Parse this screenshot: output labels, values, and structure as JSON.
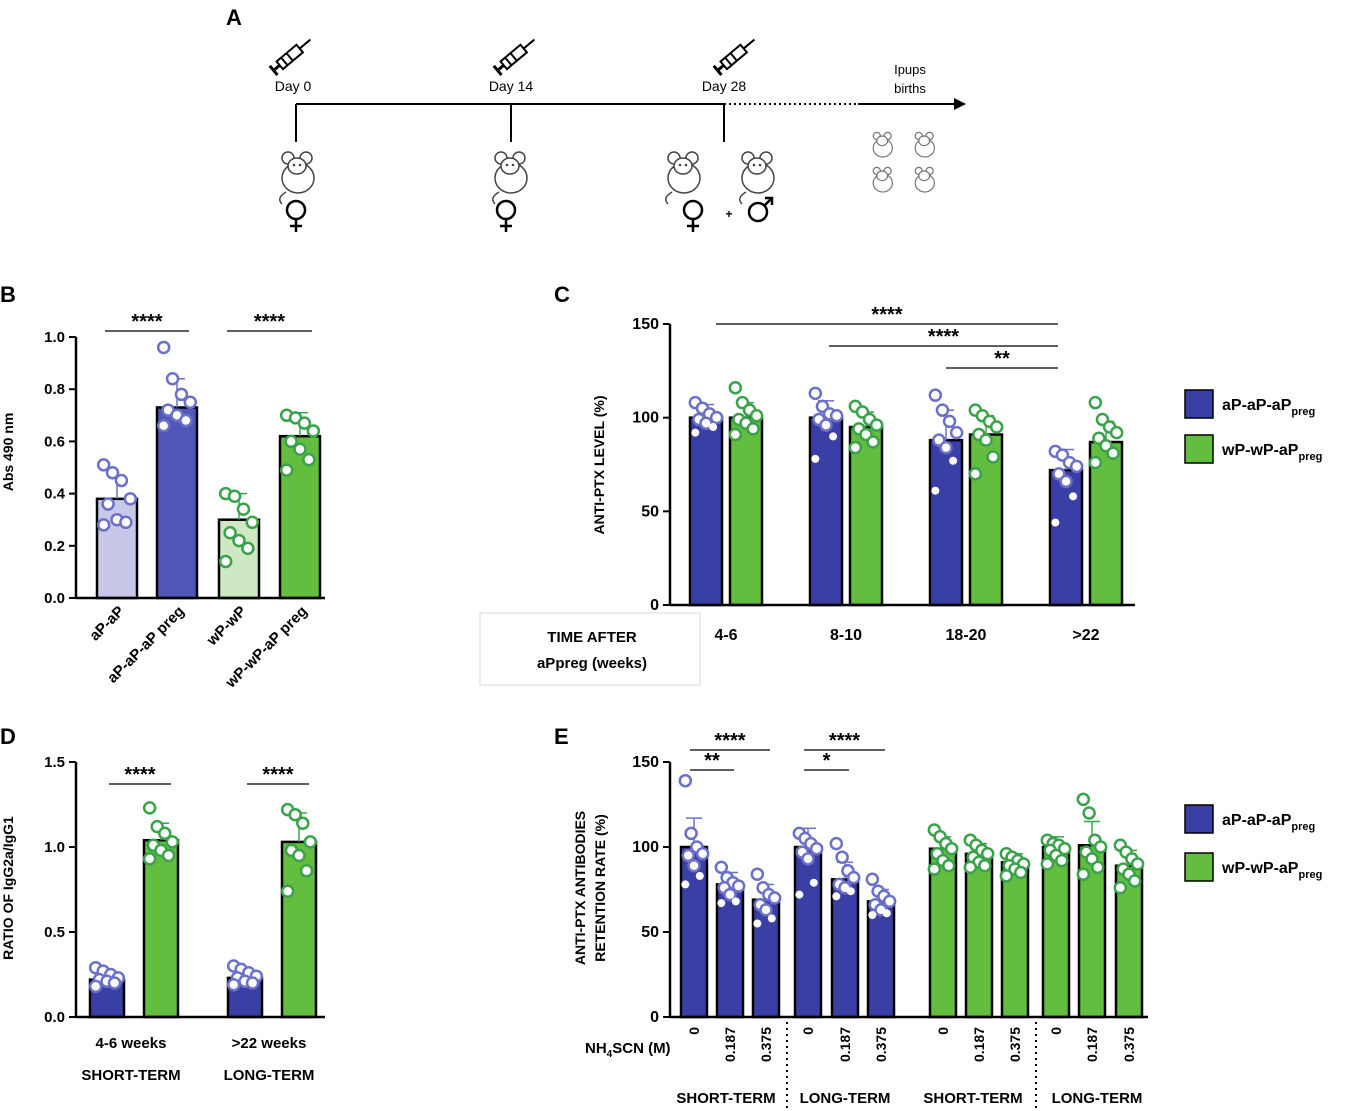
{
  "colors": {
    "ap_blue": "#3a3fa6",
    "ap_light": "#c7c8e8",
    "ap_mid": "#5057b8",
    "wp_green": "#63bd3f",
    "wp_light": "#cde8c2",
    "ap_marker": "#6b70c9",
    "wp_marker": "#3aa24a",
    "axis": "#000000"
  },
  "panel_a": {
    "letter": "A",
    "days": [
      "Day 0",
      "Day 14",
      "Day 28"
    ],
    "end_label_line1": "Ipups",
    "end_label_line2": "births",
    "plus": "+"
  },
  "chart_data": [
    {
      "panel": "B",
      "type": "bar",
      "ylabel": "Abs 490 nm",
      "ylim": [
        0,
        1.0
      ],
      "yticks": [
        "0.0",
        "0.2",
        "0.4",
        "0.6",
        "0.8",
        "1.0"
      ],
      "categories": [
        "aP-aP",
        "aP-aP-aP preg",
        "wP-wP",
        "wP-wP-aP preg"
      ],
      "values": [
        0.38,
        0.73,
        0.3,
        0.62
      ],
      "errors": [
        0.09,
        0.11,
        0.1,
        0.09
      ],
      "points": [
        [
          0.51,
          0.48,
          0.45,
          0.38,
          0.36,
          0.3,
          0.29,
          0.28
        ],
        [
          0.96,
          0.84,
          0.78,
          0.75,
          0.72,
          0.7,
          0.68,
          0.66
        ],
        [
          0.4,
          0.39,
          0.34,
          0.29,
          0.25,
          0.22,
          0.19,
          0.14
        ],
        [
          0.7,
          0.69,
          0.67,
          0.64,
          0.6,
          0.57,
          0.53,
          0.49
        ]
      ],
      "significance": [
        {
          "label": "****",
          "from": 0,
          "to": 1
        },
        {
          "label": "****",
          "from": 2,
          "to": 3
        }
      ]
    },
    {
      "panel": "C",
      "type": "bar",
      "ylabel": "ANTI-PTX LEVEL (%)",
      "ylim": [
        0,
        150
      ],
      "yticks": [
        "0",
        "50",
        "100",
        "150"
      ],
      "categories": [
        "4-6",
        "8-10",
        "18-20",
        ">22"
      ],
      "xlabel_line1": "TIME AFTER",
      "xlabel_line2": "aPpreg (weeks)",
      "series": [
        {
          "name": "aP-aP-aP",
          "sub": "preg",
          "values": [
            100,
            100,
            88,
            72
          ],
          "errors": [
            7,
            9,
            16,
            11
          ],
          "points": [
            [
              108,
              105,
              102,
              100,
              99,
              97,
              95,
              92
            ],
            [
              113,
              106,
              102,
              101,
              99,
              96,
              90,
              78
            ],
            [
              112,
              104,
              98,
              92,
              88,
              84,
              77,
              61
            ],
            [
              82,
              80,
              76,
              74,
              70,
              66,
              58,
              44
            ]
          ]
        },
        {
          "name": "wP-wP-aP",
          "sub": "preg",
          "values": [
            100,
            95,
            91,
            87
          ],
          "errors": [
            8,
            8,
            10,
            11
          ],
          "points": [
            [
              116,
              108,
              104,
              101,
              99,
              97,
              94,
              91
            ],
            [
              106,
              103,
              99,
              96,
              94,
              91,
              87,
              84
            ],
            [
              104,
              101,
              98,
              95,
              91,
              88,
              79,
              70
            ],
            [
              108,
              99,
              95,
              92,
              89,
              85,
              81,
              76
            ]
          ]
        }
      ],
      "significance": [
        {
          "label": "****",
          "from": 0,
          "to": 3
        },
        {
          "label": "****",
          "from": 1,
          "to": 3
        },
        {
          "label": "**",
          "from": 2,
          "to": 3
        }
      ]
    },
    {
      "panel": "D",
      "type": "bar",
      "ylabel": "RATIO OF IgG2a/IgG1",
      "ylim": [
        0,
        1.5
      ],
      "yticks": [
        "0.0",
        "0.5",
        "1.0",
        "1.5"
      ],
      "categories": [
        "4-6 weeks",
        ">22 weeks"
      ],
      "group_labels": [
        "SHORT-TERM",
        "LONG-TERM"
      ],
      "series": [
        {
          "name": "aP-aP-aP",
          "values": [
            0.22,
            0.23
          ],
          "errors": [
            0.05,
            0.05
          ],
          "points": [
            [
              0.29,
              0.27,
              0.25,
              0.23,
              0.22,
              0.21,
              0.2,
              0.18
            ],
            [
              0.3,
              0.28,
              0.26,
              0.24,
              0.23,
              0.21,
              0.2,
              0.19
            ]
          ]
        },
        {
          "name": "wP-wP-aP",
          "values": [
            1.04,
            1.03
          ],
          "errors": [
            0.1,
            0.17
          ],
          "points": [
            [
              1.23,
              1.12,
              1.08,
              1.03,
              1.01,
              0.98,
              0.95,
              0.93
            ],
            [
              1.22,
              1.19,
              1.14,
              1.03,
              0.98,
              0.95,
              0.86,
              0.74
            ]
          ]
        }
      ],
      "significance": [
        {
          "label": "****",
          "group": 0
        },
        {
          "label": "****",
          "group": 1
        }
      ]
    },
    {
      "panel": "E",
      "type": "bar",
      "ylabel_line1": "ANTI-PTX ANTIBODIES",
      "ylabel_line2": "RETENTION RATE (%)",
      "ylim": [
        0,
        150
      ],
      "yticks": [
        "0",
        "50",
        "100",
        "150"
      ],
      "xtick_labels": [
        "0",
        "0.187",
        "0.375",
        "0",
        "0.187",
        "0.375",
        "0",
        "0.187",
        "0.375",
        "0",
        "0.187",
        "0.375"
      ],
      "x_axis_prefix": "NH",
      "x_axis_sub": "4",
      "x_axis_suffix": "SCN (M)",
      "group_labels": [
        "SHORT-TERM",
        "LONG-TERM",
        "SHORT-TERM",
        "LONG-TERM"
      ],
      "bar_series": [
        "aP",
        "aP",
        "aP",
        "aP",
        "aP",
        "aP",
        "wP",
        "wP",
        "wP",
        "wP",
        "wP",
        "wP"
      ],
      "values": [
        100,
        78,
        69,
        100,
        81,
        68,
        99,
        96,
        91,
        100,
        101,
        89
      ],
      "errors": [
        17,
        7,
        9,
        11,
        10,
        7,
        7,
        6,
        5,
        6,
        14,
        9
      ],
      "points": [
        [
          139,
          108,
          100,
          96,
          95,
          89,
          83,
          78
        ],
        [
          88,
          82,
          79,
          77,
          76,
          72,
          68,
          67
        ],
        [
          84,
          76,
          72,
          70,
          66,
          63,
          58,
          55
        ],
        [
          108,
          105,
          102,
          99,
          97,
          93,
          79,
          72
        ],
        [
          102,
          94,
          86,
          82,
          78,
          76,
          74,
          71
        ],
        [
          81,
          74,
          71,
          68,
          66,
          63,
          61,
          60
        ],
        [
          110,
          106,
          102,
          99,
          96,
          92,
          89,
          87
        ],
        [
          104,
          101,
          98,
          96,
          94,
          91,
          89,
          88
        ],
        [
          96,
          94,
          92,
          90,
          89,
          87,
          85,
          83
        ],
        [
          104,
          102,
          101,
          99,
          98,
          95,
          92,
          90
        ],
        [
          128,
          120,
          104,
          100,
          97,
          93,
          88,
          84
        ],
        [
          101,
          97,
          93,
          90,
          87,
          84,
          80,
          76
        ]
      ],
      "significance": [
        {
          "label": "**",
          "from": 0,
          "to": 1
        },
        {
          "label": "****",
          "from": 0,
          "to": 2
        },
        {
          "label": "*",
          "from": 3,
          "to": 4
        },
        {
          "label": "****",
          "from": 3,
          "to": 5
        }
      ]
    }
  ],
  "legend": {
    "entries": [
      {
        "name": "aP-aP-aP",
        "sub": "preg"
      },
      {
        "name": "wP-wP-aP",
        "sub": "preg"
      }
    ]
  }
}
